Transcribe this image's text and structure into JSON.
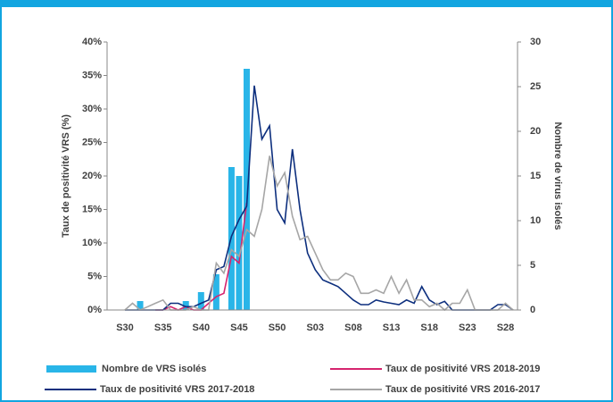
{
  "chart_data": {
    "type": "bar",
    "categories": [
      "S30",
      null,
      null,
      null,
      null,
      "S35",
      null,
      null,
      null,
      null,
      "S40",
      null,
      null,
      null,
      null,
      "S45",
      null,
      null,
      null,
      null,
      "S50",
      null,
      null,
      null,
      null,
      "S03",
      null,
      null,
      null,
      null,
      "S08",
      null,
      null,
      null,
      null,
      "S13",
      null,
      null,
      null,
      null,
      "S18",
      null,
      null,
      null,
      null,
      "S23",
      null,
      null,
      null,
      null,
      "S28",
      null
    ],
    "y_label": "Taux de positivité VRS (%)",
    "y2_label": "Nombre de virus isolés",
    "ylim": [
      0,
      40
    ],
    "yticks": [
      {
        "value": 0,
        "label": "0%"
      },
      {
        "value": 5,
        "label": "5%"
      },
      {
        "value": 10,
        "label": "10%"
      },
      {
        "value": 15,
        "label": "15%"
      },
      {
        "value": 20,
        "label": "20%"
      },
      {
        "value": 25,
        "label": "25%"
      },
      {
        "value": 30,
        "label": "30%"
      },
      {
        "value": 35,
        "label": "35%"
      },
      {
        "value": 40,
        "label": "40%"
      }
    ],
    "y2lim": [
      0,
      30
    ],
    "y2ticks": [
      0,
      5,
      10,
      15,
      20,
      25,
      30
    ],
    "series": [
      {
        "name": "Nombre de VRS isolés",
        "type": "bar",
        "axis": "y2",
        "color": "#29b5e8",
        "values": [
          null,
          null,
          1,
          null,
          null,
          null,
          null,
          null,
          1,
          null,
          2,
          null,
          4,
          null,
          16,
          15,
          27,
          null,
          null,
          null,
          null,
          null,
          null,
          null,
          null,
          null,
          null,
          null,
          null,
          null,
          null,
          null,
          null,
          null,
          null,
          null,
          null,
          null,
          null,
          null,
          null,
          null,
          null,
          null,
          null,
          null,
          null,
          null,
          null,
          null,
          null,
          null
        ]
      },
      {
        "name": "Taux de positivité VRS 2018-2019",
        "type": "line",
        "color": "#d6246e",
        "values": [
          null,
          null,
          null,
          null,
          0,
          0,
          0.5,
          0,
          0.5,
          0,
          0,
          1,
          2,
          2.5,
          8,
          7,
          16,
          null,
          null,
          null,
          null,
          null,
          null,
          null,
          null,
          null,
          null,
          null,
          null,
          null,
          null,
          null,
          null,
          null,
          null,
          null,
          null,
          null,
          null,
          null,
          null,
          null,
          null,
          null,
          null,
          null,
          null,
          null,
          null,
          null,
          null,
          null
        ]
      },
      {
        "name": "Taux de positivité VRS 2017-2018",
        "type": "line",
        "color": "#0d2f7e",
        "values": [
          0,
          0,
          0,
          0,
          0,
          0,
          1,
          1,
          0.5,
          0.5,
          1,
          1.5,
          6,
          6.5,
          11,
          13.5,
          15.5,
          33.5,
          25.5,
          27.5,
          15,
          13,
          24,
          15,
          8.5,
          6,
          4.5,
          4,
          3.5,
          2.5,
          1.5,
          0.8,
          0.8,
          1.5,
          1.2,
          1,
          0.8,
          1.5,
          1,
          3.5,
          1.5,
          0.8,
          1.3,
          0,
          0,
          0,
          0,
          0,
          0,
          0.8,
          0.8,
          0
        ]
      },
      {
        "name": "Taux de positivité VRS 2016-2017",
        "type": "line",
        "color": "#a6a6a6",
        "values": [
          0,
          1,
          0,
          0.5,
          1,
          1.5,
          0,
          0,
          0,
          0.5,
          0,
          0,
          7,
          5.5,
          9,
          8,
          12,
          11,
          15,
          23,
          18.5,
          20.5,
          14,
          10.5,
          11,
          8.5,
          6,
          4.5,
          4.5,
          5.5,
          5,
          2.5,
          2.5,
          3,
          2.5,
          5,
          2.5,
          4.5,
          1.5,
          1.5,
          0.5,
          1,
          0,
          1,
          1,
          3,
          0,
          0,
          0,
          0,
          1,
          0
        ]
      }
    ]
  }
}
